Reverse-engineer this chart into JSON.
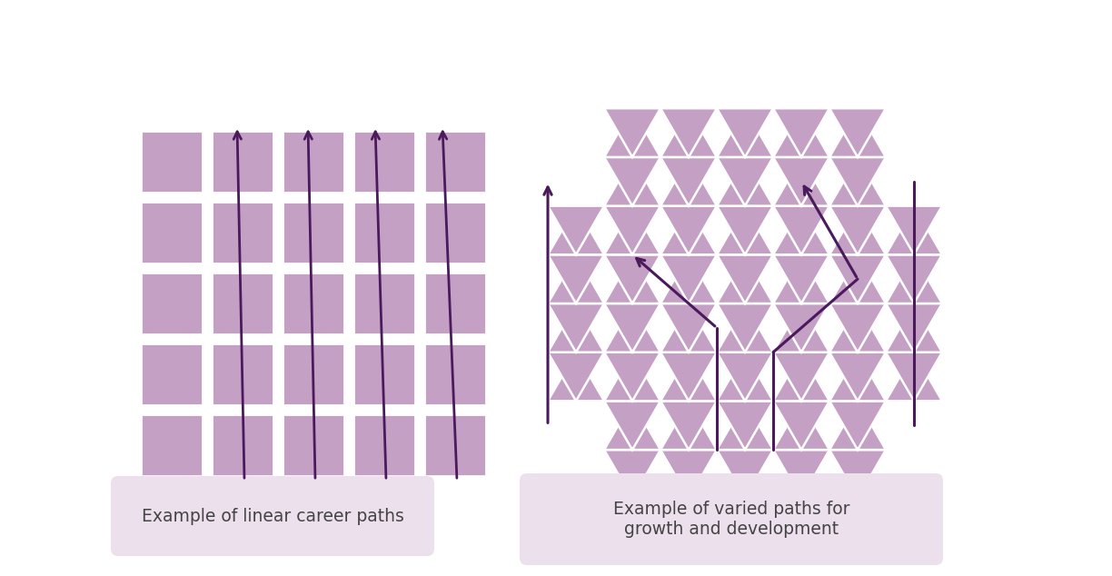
{
  "bg_color": "#ffffff",
  "grid_fill": "#c4a0c4",
  "arrow_color": "#4a1a5c",
  "label_bg": "#ede0ed",
  "label_text_color": "#444444",
  "label1": "Example of linear career paths",
  "label2": "Example of varied paths for\ngrowth and development",
  "grid_white": "#ffffff"
}
